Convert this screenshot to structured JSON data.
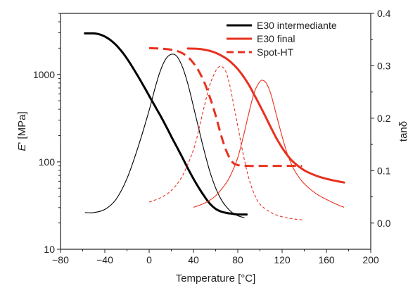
{
  "chart_data": {
    "type": "line",
    "xlabel": "Temperature [°C]",
    "ylabel_left": "E' [MPa]",
    "ylabel_left_italic": "E",
    "ylabel_left_rest": "' [MPa]",
    "ylabel_right": "tanδ",
    "xlim": [
      -80,
      200
    ],
    "ylim_left": [
      10,
      5000
    ],
    "ylim_right": [
      -0.05,
      0.4
    ],
    "yscale_left": "log",
    "yscale_right": "linear",
    "grid": false,
    "legend_position": "top-right",
    "x_ticks": [
      -80,
      -40,
      0,
      40,
      80,
      120,
      160,
      200
    ],
    "y_left_ticks": [
      {
        "value": 10,
        "label": "10"
      },
      {
        "value": 100,
        "label": "100"
      },
      {
        "value": 1000,
        "label": "1000"
      }
    ],
    "y_right_ticks": [
      0.0,
      0.1,
      0.2,
      0.3,
      0.4
    ],
    "y_right_tick_labels": [
      "0.0",
      "0.1",
      "0.2",
      "0.3",
      "0.4"
    ],
    "series": [
      {
        "name": "E30 intermediante",
        "color": "#000000",
        "style": "solid",
        "modulus": {
          "axis": "left",
          "x": [
            -58,
            -50,
            -45,
            -40,
            -35,
            -30,
            -25,
            -20,
            -15,
            -10,
            -5,
            0,
            5,
            10,
            15,
            20,
            25,
            30,
            35,
            40,
            45,
            50,
            55,
            60,
            65,
            70,
            75,
            80,
            88
          ],
          "y": [
            2950,
            2950,
            2880,
            2720,
            2480,
            2180,
            1850,
            1520,
            1210,
            950,
            740,
            570,
            440,
            340,
            260,
            195,
            148,
            112,
            84,
            64,
            50,
            40,
            33,
            29,
            27,
            26,
            25.5,
            25,
            25
          ]
        },
        "tan_delta": {
          "axis": "right",
          "x": [
            -58,
            -50,
            -40,
            -30,
            -20,
            -10,
            0,
            5,
            10,
            15,
            20,
            25,
            30,
            35,
            40,
            45,
            50,
            55,
            60,
            65,
            70,
            75,
            80,
            86
          ],
          "y": [
            0.02,
            0.02,
            0.026,
            0.045,
            0.085,
            0.145,
            0.215,
            0.255,
            0.29,
            0.313,
            0.322,
            0.318,
            0.298,
            0.265,
            0.222,
            0.178,
            0.135,
            0.097,
            0.067,
            0.045,
            0.03,
            0.02,
            0.014,
            0.01
          ]
        }
      },
      {
        "name": "E30 final",
        "color": "#e8311e",
        "style": "solid",
        "modulus": {
          "axis": "left",
          "x": [
            35,
            40,
            45,
            50,
            55,
            60,
            65,
            70,
            75,
            80,
            85,
            90,
            95,
            100,
            105,
            110,
            115,
            120,
            125,
            130,
            140,
            150,
            160,
            170,
            176
          ],
          "y": [
            1980,
            1975,
            1960,
            1920,
            1860,
            1770,
            1650,
            1510,
            1340,
            1150,
            950,
            760,
            580,
            440,
            330,
            245,
            185,
            145,
            118,
            100,
            80,
            70,
            64,
            60,
            58
          ]
        },
        "tan_delta": {
          "axis": "right",
          "x": [
            40,
            50,
            60,
            70,
            75,
            80,
            85,
            90,
            95,
            100,
            103,
            106,
            110,
            115,
            120,
            125,
            130,
            135,
            140,
            150,
            160,
            170,
            176
          ],
          "y": [
            0.03,
            0.038,
            0.052,
            0.078,
            0.098,
            0.125,
            0.165,
            0.21,
            0.25,
            0.27,
            0.272,
            0.266,
            0.245,
            0.205,
            0.165,
            0.13,
            0.105,
            0.088,
            0.075,
            0.057,
            0.045,
            0.035,
            0.03
          ]
        }
      },
      {
        "name": "Spot-HT",
        "color": "#e8311e",
        "style": "dashed",
        "modulus": {
          "axis": "left",
          "x": [
            0,
            10,
            20,
            25,
            30,
            35,
            40,
            45,
            50,
            55,
            60,
            65,
            70,
            75,
            80,
            90,
            100,
            110,
            120,
            130,
            138
          ],
          "y": [
            2000,
            1980,
            1920,
            1860,
            1750,
            1580,
            1350,
            1080,
            800,
            540,
            340,
            200,
            130,
            100,
            92,
            90,
            90,
            90,
            90,
            90,
            90
          ]
        },
        "tan_delta": {
          "axis": "right",
          "x": [
            0,
            10,
            20,
            30,
            40,
            45,
            50,
            55,
            60,
            63,
            66,
            69,
            72,
            75,
            80,
            85,
            90,
            95,
            100,
            110,
            120,
            130,
            138
          ],
          "y": [
            0.04,
            0.048,
            0.062,
            0.09,
            0.14,
            0.18,
            0.225,
            0.265,
            0.29,
            0.298,
            0.298,
            0.29,
            0.27,
            0.24,
            0.185,
            0.13,
            0.085,
            0.055,
            0.036,
            0.02,
            0.012,
            0.008,
            0.006
          ]
        }
      }
    ]
  }
}
